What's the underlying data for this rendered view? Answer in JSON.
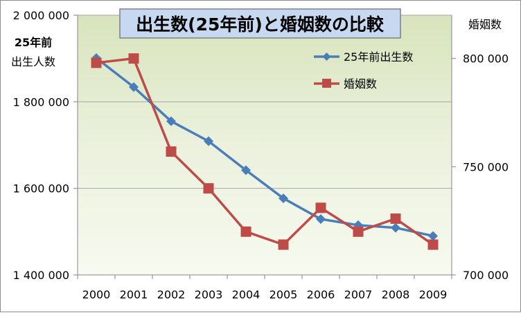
{
  "chart_data": {
    "type": "line",
    "title": "出生数(25年前)と婚姻数の比較",
    "categories": [
      "2000",
      "2001",
      "2002",
      "2003",
      "2004",
      "2005",
      "2006",
      "2007",
      "2008",
      "2009"
    ],
    "y_left": {
      "label_line1": "25年前",
      "label_line2": "出生人数",
      "ylim": [
        1400000,
        2000000
      ],
      "ticks": [
        1400000,
        1600000,
        1800000,
        2000000
      ],
      "tick_labels": [
        "1 400 000",
        "1 600 000",
        "1 800 000",
        "2 000 000"
      ]
    },
    "y_right": {
      "label": "婚姻数",
      "ylim": [
        700000,
        820000
      ],
      "ticks": [
        700000,
        750000,
        800000
      ],
      "tick_labels": [
        "700 000",
        "750 000",
        "800 000"
      ]
    },
    "series": [
      {
        "name": "25年前出生数",
        "axis": "left",
        "color": "#4a7ebb",
        "marker": "diamond",
        "values": [
          1901000,
          1834000,
          1755000,
          1709000,
          1642000,
          1577000,
          1529000,
          1515000,
          1509000,
          1490000
        ]
      },
      {
        "name": "婚姻数",
        "axis": "right",
        "color": "#be4b48",
        "marker": "square",
        "values": [
          798000,
          800000,
          757000,
          740000,
          720000,
          714000,
          731000,
          720000,
          726000,
          714000
        ]
      }
    ],
    "legend_position": "top-right",
    "plot_background": "#ebf1dd",
    "grid": "horizontal"
  }
}
